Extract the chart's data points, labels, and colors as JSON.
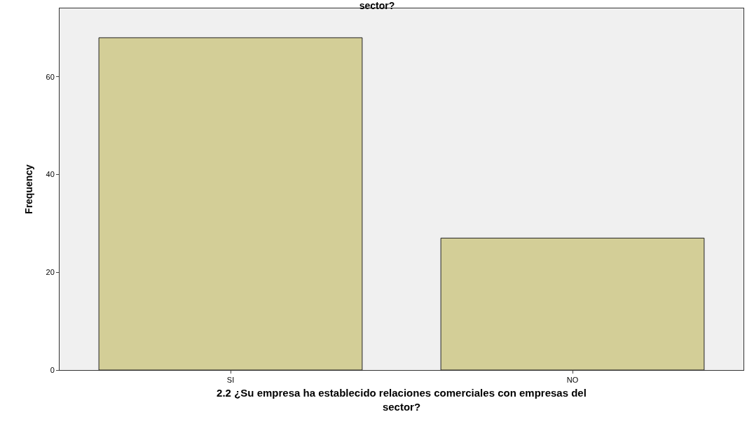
{
  "chart_data": {
    "type": "bar",
    "title": "sector?",
    "xlabel": "2.2 ¿Su empresa ha establecido relaciones comerciales con empresas del sector?",
    "ylabel": "Frequency",
    "categories": [
      "SI",
      "NO"
    ],
    "values": [
      68,
      27
    ],
    "color": "#d3ce97",
    "ylim": [
      0,
      74
    ],
    "yticks": [
      0,
      20,
      40,
      60
    ],
    "grid": false,
    "legend": false
  }
}
